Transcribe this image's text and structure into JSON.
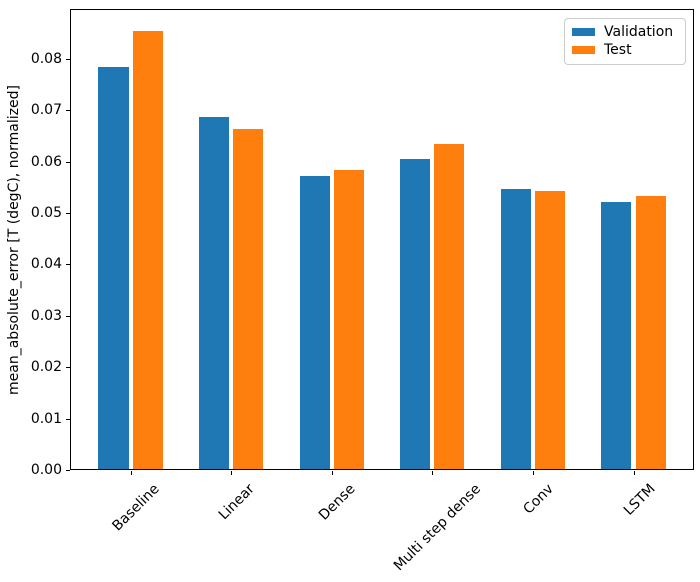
{
  "figure": {
    "background": "#ffffff",
    "frame_color": "#000000"
  },
  "chart_data": {
    "type": "bar",
    "title": "",
    "xlabel": "",
    "ylabel": "mean_absolute_error [T (degC), normalized]",
    "categories": [
      "Baseline",
      "Linear",
      "Dense",
      "Multi step dense",
      "Conv",
      "LSTM"
    ],
    "series": [
      {
        "name": "Validation",
        "color": "#1f77b4",
        "values": [
          0.0785,
          0.0687,
          0.0572,
          0.0606,
          0.0546,
          0.0522
        ]
      },
      {
        "name": "Test",
        "color": "#ff7f0e",
        "values": [
          0.0854,
          0.0664,
          0.0583,
          0.0634,
          0.0543,
          0.0534
        ]
      }
    ],
    "ylim": [
      0,
      0.0897
    ],
    "yticks": [
      0.0,
      0.01,
      0.02,
      0.03,
      0.04,
      0.05,
      0.06,
      0.07,
      0.08
    ],
    "ytick_labels": [
      "0.00",
      "0.01",
      "0.02",
      "0.03",
      "0.04",
      "0.05",
      "0.06",
      "0.07",
      "0.08"
    ],
    "xtick_rotation_deg": 45,
    "bar_width": 0.3,
    "bar_offsets": [
      -0.17,
      0.17
    ],
    "grid": false,
    "legend": {
      "position": "upper right",
      "entries": [
        "Validation",
        "Test"
      ]
    }
  }
}
